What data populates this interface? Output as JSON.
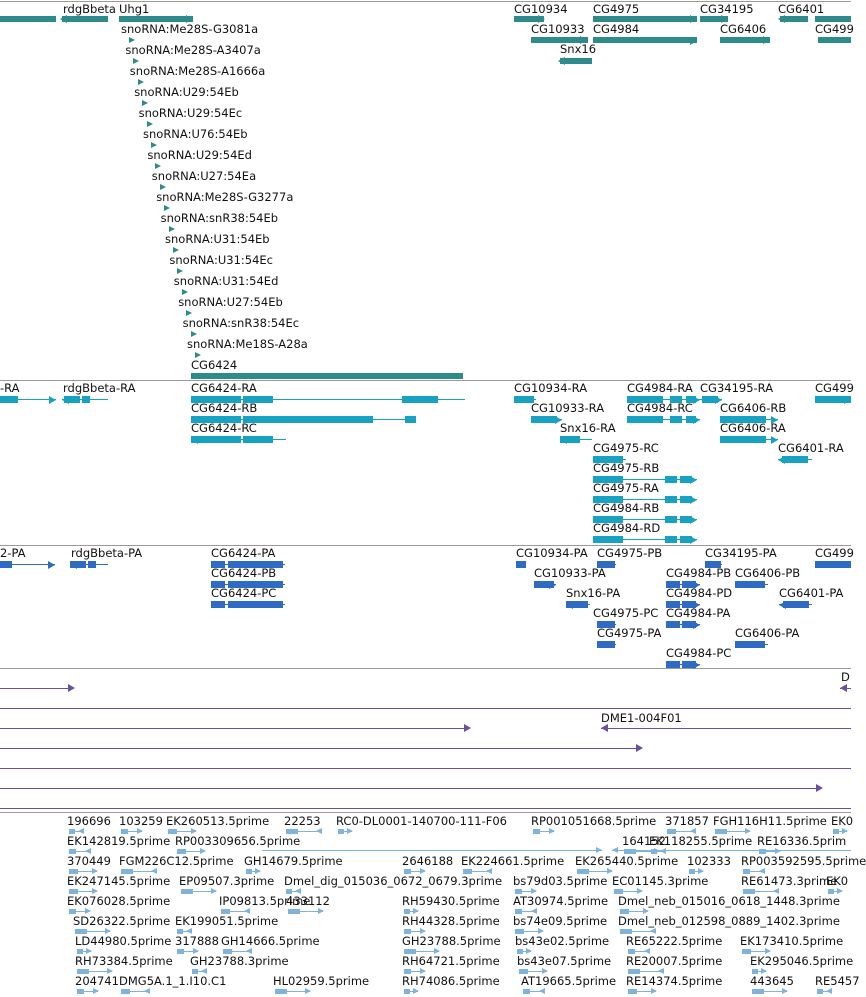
{
  "colors": {
    "gene": "#2e8b8b",
    "transcript": "#17a2c4",
    "protein": "#2d6bc4",
    "clone": "#6b4fa0",
    "est": "#7db3dc",
    "separator": "#9a9a9a",
    "text": "#111111"
  },
  "genes": {
    "labels": [
      "rdgBbeta",
      "Uhg1",
      "CG10934",
      "CG4975",
      "CG34195",
      "CG6401",
      "CG10933",
      "CG4984",
      "CG6406",
      "CG499",
      "Snx16",
      "CG6424"
    ],
    "snornas": [
      "snoRNA:Me28S-G3081a",
      "snoRNA:Me28S-A3407a",
      "snoRNA:Me28S-A1666a",
      "snoRNA:U29:54Eb",
      "snoRNA:U29:54Ec",
      "snoRNA:U76:54Eb",
      "snoRNA:U29:54Ed",
      "snoRNA:U27:54Ea",
      "snoRNA:Me28S-G3277a",
      "snoRNA:snR38:54Eb",
      "snoRNA:U31:54Eb",
      "snoRNA:U31:54Ec",
      "snoRNA:U31:54Ed",
      "snoRNA:U27:54Eb",
      "snoRNA:snR38:54Ec",
      "snoRNA:Me18S-A28a"
    ]
  },
  "transcripts": {
    "labels": [
      "-RA",
      "rdgBbeta-RA",
      "CG6424-RA",
      "CG10934-RA",
      "CG4984-RA",
      "CG34195-RA",
      "CG499",
      "CG6424-RB",
      "CG10933-RA",
      "CG4984-RC",
      "CG6406-RB",
      "CG6424-RC",
      "Snx16-RA",
      "CG6406-RA",
      "CG4975-RC",
      "CG6401-RA",
      "CG4975-RB",
      "CG4975-RA",
      "CG4984-RB",
      "CG4984-RD"
    ]
  },
  "proteins": {
    "labels": [
      "2-PA",
      "rdgBbeta-PA",
      "CG6424-PA",
      "CG10934-PA",
      "CG4975-PB",
      "CG34195-PA",
      "CG499",
      "CG6424-PB",
      "CG10933-PA",
      "CG4984-PB",
      "CG6406-PB",
      "CG6424-PC",
      "Snx16-PA",
      "CG4984-PD",
      "CG6401-PA",
      "CG4975-PC",
      "CG4984-PA",
      "CG4975-PA",
      "CG6406-PA",
      "CG4984-PC"
    ]
  },
  "clones": {
    "labels": [
      "D",
      "DME1-004F01"
    ]
  },
  "ests": {
    "labels": [
      "196696",
      "103259",
      "EK260513.5prime",
      "22253",
      "RC0-DL0001-140700-111-F06",
      "RP001051668.5prime",
      "371857",
      "FGH116H11.5prime",
      "EK0",
      "EK142819.5prime",
      "RP003309656.5prime",
      "164152",
      "EK118255.5prime",
      "RE16336.5prim",
      "370449",
      "FGM226C12.5prime",
      "GH14679.5prime",
      "2646188",
      "EK224661.5prime",
      "EK265440.5prime",
      "102333",
      "RP003592595.5prime",
      "EK247145.5prime",
      "EP09507.3prime",
      "Dmel_dig_015036_0672_0679.3prime",
      "bs79d03.5prime",
      "EC01145.3prime",
      "RE61473.3prime",
      "EK0",
      "EK076028.5prime",
      "IP09813.5prime",
      "433112",
      "RH59430.5prime",
      "AT30974.5prime",
      "Dmel_neb_015016_0618_1448.3prime",
      "SD26322.5prime",
      "EK199051.5prime",
      "RH44328.5prime",
      "bs74e09.5prime",
      "Dmel_neb_012598_0889_1402.3prime",
      "LD44980.5prime",
      "317888",
      "GH14666.5prime",
      "GH23788.5prime",
      "bs43e02.5prime",
      "RE65222.5prime",
      "EK173410.5prime",
      "RH73384.5prime",
      "GH23788.3prime",
      "RH64721.5prime",
      "bs43e07.5prime",
      "RE20007.5prime",
      "EK295046.5prime",
      "204741",
      "DMG5A.1_1.I10.C1",
      "HL02959.5prime",
      "RH74086.5prime",
      "AT19665.5prime",
      "RE14374.5prime",
      "443645",
      "RE5457"
    ]
  }
}
